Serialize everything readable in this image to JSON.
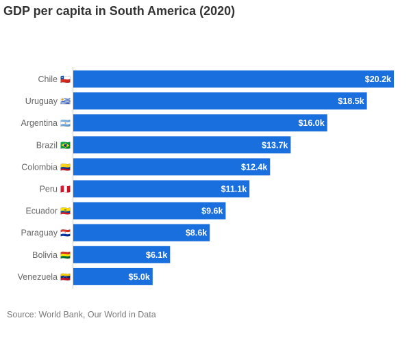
{
  "title": "GDP per capita in South America (2020)",
  "source": "Source: World Bank, Our World in Data",
  "colors": {
    "bar": "#1a6fdf",
    "axis": "#cccccc",
    "label": "#666666",
    "title": "#333333"
  },
  "chart_data": {
    "type": "bar",
    "orientation": "horizontal",
    "title": "GDP per capita in South America (2020)",
    "xlabel": "",
    "ylabel": "",
    "unit": "thousand USD",
    "xlim": [
      0,
      20.2
    ],
    "grid": false,
    "legend": "none",
    "categories": [
      "Chile",
      "Uruguay",
      "Argentina",
      "Brazil",
      "Colombia",
      "Peru",
      "Ecuador",
      "Paraguay",
      "Bolivia",
      "Venezuela"
    ],
    "flags": [
      "🇨🇱",
      "🇺🇾",
      "🇦🇷",
      "🇧🇷",
      "🇨🇴",
      "🇵🇪",
      "🇪🇨",
      "🇵🇾",
      "🇧🇴",
      "🇻🇪"
    ],
    "values": [
      20.2,
      18.5,
      16.0,
      13.7,
      12.4,
      11.1,
      9.6,
      8.6,
      6.1,
      5.0
    ],
    "value_labels": [
      "$20.2k",
      "$18.5k",
      "$16.0k",
      "$13.7k",
      "$12.4k",
      "$11.1k",
      "$9.6k",
      "$8.6k",
      "$6.1k",
      "$5.0k"
    ]
  }
}
